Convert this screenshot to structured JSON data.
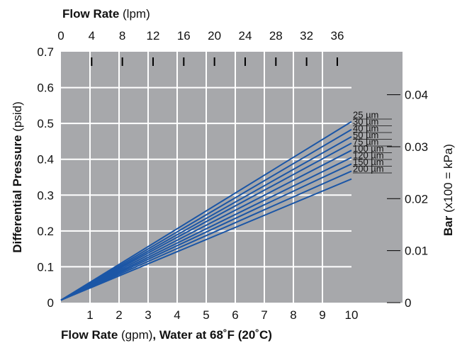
{
  "chart_data": {
    "type": "line",
    "title": "",
    "x_bottom": {
      "label_bold": "Flow Rate",
      "label_unit": " (gpm)",
      "label_suffix": ", Water at 68˚F (20˚C)",
      "range": [
        0,
        10
      ],
      "ticks": [
        1,
        2,
        3,
        4,
        5,
        6,
        7,
        8,
        9,
        10
      ]
    },
    "x_top": {
      "label_bold": "Flow Rate",
      "label_unit": " (lpm)",
      "ticks": [
        0,
        4,
        8,
        12,
        16,
        20,
        24,
        28,
        32,
        36
      ]
    },
    "y_left": {
      "label_bold": "Differential Pressure",
      "label_unit": " (psid)",
      "range": [
        0,
        0.7
      ],
      "ticks": [
        0,
        0.1,
        0.2,
        0.3,
        0.4,
        0.5,
        0.6,
        0.7
      ]
    },
    "y_right": {
      "label_bold": "Bar",
      "label_unit": " (x100 = kPa)",
      "ticks": [
        0,
        0.01,
        0.02,
        0.03,
        0.04
      ]
    },
    "grid": true,
    "series": [
      {
        "name": "25 µm",
        "x": [
          0,
          10
        ],
        "y": [
          0.007,
          0.505
        ]
      },
      {
        "name": "30 µm",
        "x": [
          0,
          10
        ],
        "y": [
          0.007,
          0.483
        ]
      },
      {
        "name": "40 µm",
        "x": [
          0,
          10
        ],
        "y": [
          0.007,
          0.463
        ]
      },
      {
        "name": "50 µm",
        "x": [
          0,
          10
        ],
        "y": [
          0.007,
          0.445
        ]
      },
      {
        "name": "75 µm",
        "x": [
          0,
          10
        ],
        "y": [
          0.007,
          0.425
        ]
      },
      {
        "name": "100 µm",
        "x": [
          0,
          10
        ],
        "y": [
          0.007,
          0.405
        ]
      },
      {
        "name": "120 µm",
        "x": [
          0,
          10
        ],
        "y": [
          0.007,
          0.387
        ]
      },
      {
        "name": "150 µm",
        "x": [
          0,
          10
        ],
        "y": [
          0.007,
          0.367
        ]
      },
      {
        "name": "200 µm",
        "x": [
          0,
          10
        ],
        "y": [
          0.007,
          0.345
        ]
      }
    ],
    "colors": {
      "plot_background": "#a7a8ab",
      "line": "#1b56a6",
      "grid": "#ffffff"
    }
  }
}
